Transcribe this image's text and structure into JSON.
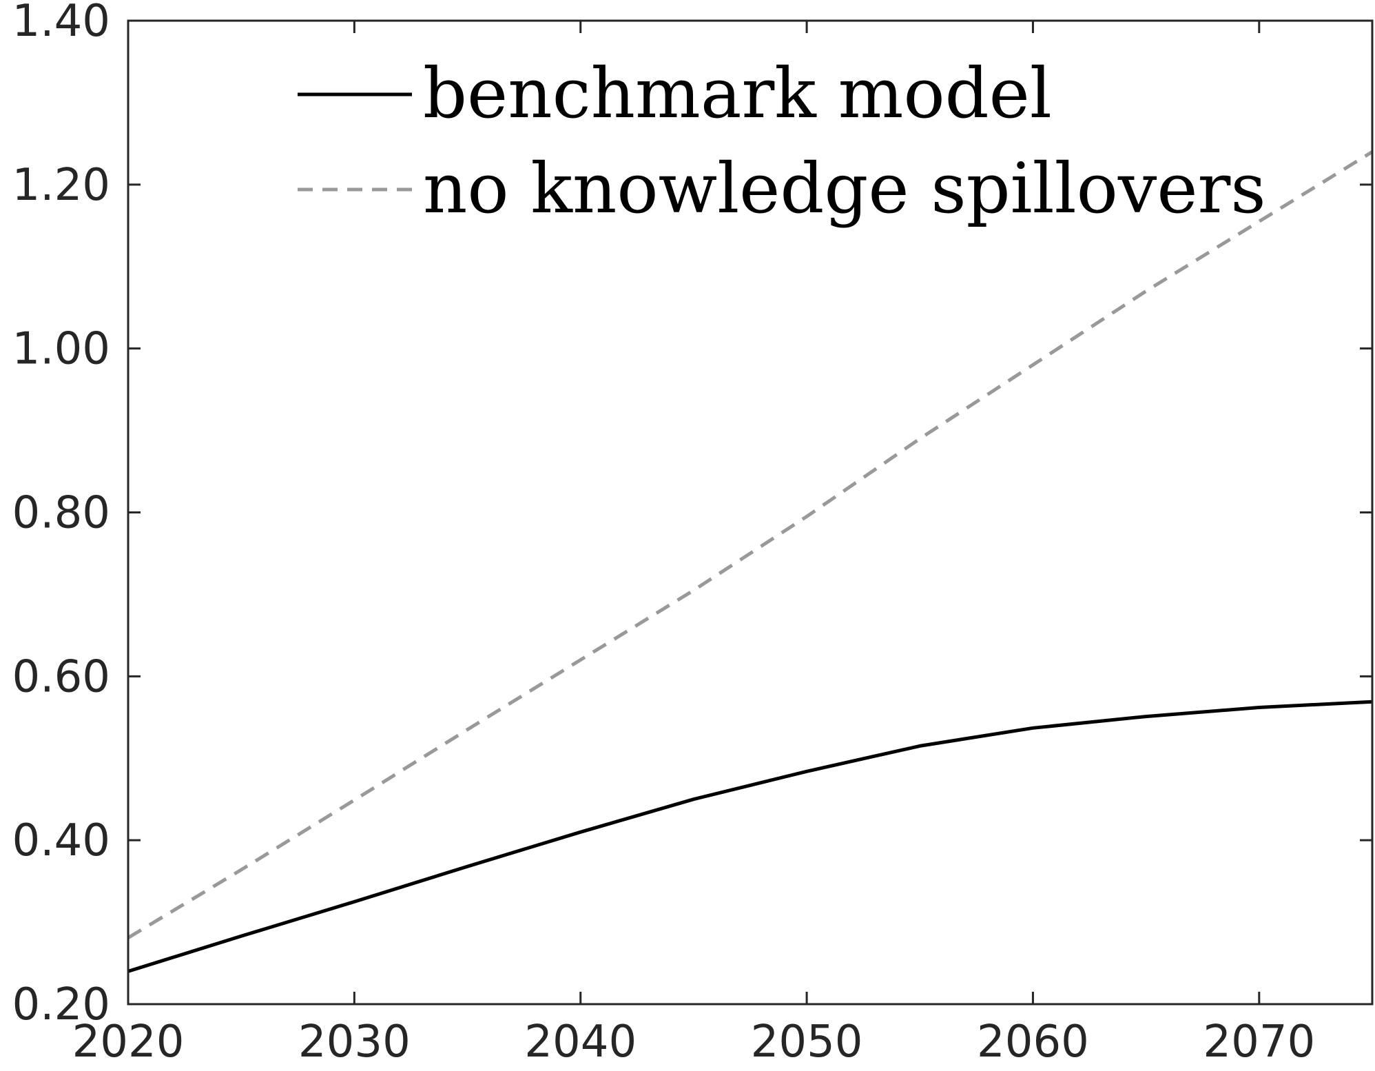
{
  "chart_data": {
    "type": "line",
    "title": "",
    "xlabel": "",
    "ylabel": "",
    "xlim": [
      2020,
      2075
    ],
    "ylim": [
      0.2,
      1.4
    ],
    "x_ticks": [
      2020,
      2030,
      2040,
      2050,
      2060,
      2070
    ],
    "x_tick_labels": [
      "2020",
      "2030",
      "2040",
      "2050",
      "2060",
      "2070"
    ],
    "y_ticks": [
      0.2,
      0.4,
      0.6,
      0.8,
      1.0,
      1.2,
      1.4
    ],
    "y_tick_labels": [
      "0.20",
      "0.40",
      "0.60",
      "0.80",
      "1.00",
      "1.20",
      "1.40"
    ],
    "grid": false,
    "legend_position": "top",
    "x": [
      2020,
      2025,
      2030,
      2035,
      2040,
      2045,
      2050,
      2055,
      2060,
      2065,
      2070,
      2075
    ],
    "series": [
      {
        "name": "benchmark model",
        "color": "#000000",
        "style": "solid",
        "values": [
          0.24,
          0.283,
          0.325,
          0.368,
          0.41,
          0.45,
          0.484,
          0.515,
          0.537,
          0.551,
          0.562,
          0.569
        ]
      },
      {
        "name": "no knowledge spillovers",
        "color": "#999999",
        "style": "dashed",
        "values": [
          0.281,
          0.364,
          0.449,
          0.535,
          0.62,
          0.705,
          0.795,
          0.89,
          0.98,
          1.07,
          1.155,
          1.24
        ]
      }
    ]
  }
}
